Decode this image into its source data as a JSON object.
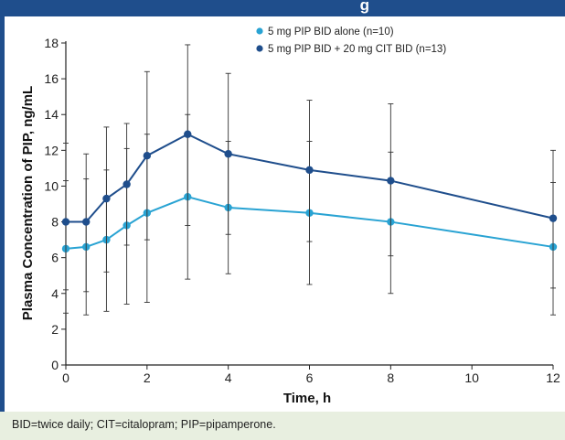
{
  "header": {
    "title_fragment": "g"
  },
  "footnote": "BID=twice daily; CIT=citalopram; PIP=pipamperone.",
  "chart_data": {
    "type": "line",
    "xlabel": "Time, h",
    "ylabel": "Plasma Concentration of PIP, ng/mL",
    "xlim": [
      0,
      12
    ],
    "ylim": [
      0,
      18
    ],
    "x_ticks": [
      0,
      2,
      4,
      6,
      8,
      10,
      12
    ],
    "y_ticks": [
      0,
      2,
      4,
      6,
      8,
      10,
      12,
      14,
      16,
      18
    ],
    "grid": false,
    "legend_position": "top-right",
    "error_bars": true,
    "series": [
      {
        "name": "5 mg PIP BID alone (n=10)",
        "color": "#29a3d3",
        "marker": "circle",
        "x": [
          0,
          0.5,
          1,
          1.5,
          2,
          3,
          4,
          6,
          8,
          12
        ],
        "y": [
          6.5,
          6.6,
          7.0,
          7.8,
          8.5,
          9.4,
          8.8,
          8.5,
          8.0,
          6.6
        ],
        "err_low": [
          2.9,
          2.8,
          3.0,
          3.4,
          3.5,
          4.8,
          5.1,
          4.5,
          4.0,
          2.8
        ],
        "err_high": [
          10.3,
          10.4,
          10.9,
          12.1,
          12.9,
          14.0,
          12.5,
          12.5,
          11.9,
          10.2
        ]
      },
      {
        "name": "5 mg PIP BID + 20 mg CIT BID (n=13)",
        "color": "#1f4e8c",
        "marker": "circle",
        "x": [
          0,
          0.5,
          1,
          1.5,
          2,
          3,
          4,
          6,
          8,
          12
        ],
        "y": [
          8.0,
          8.0,
          9.3,
          10.1,
          11.7,
          12.9,
          11.8,
          10.9,
          10.3,
          8.2
        ],
        "err_low": [
          4.2,
          4.1,
          5.2,
          6.7,
          7.0,
          7.8,
          7.3,
          6.9,
          6.1,
          4.3
        ],
        "err_high": [
          12.4,
          11.8,
          13.3,
          13.5,
          16.4,
          17.9,
          16.3,
          14.8,
          14.6,
          12.0
        ]
      }
    ]
  }
}
